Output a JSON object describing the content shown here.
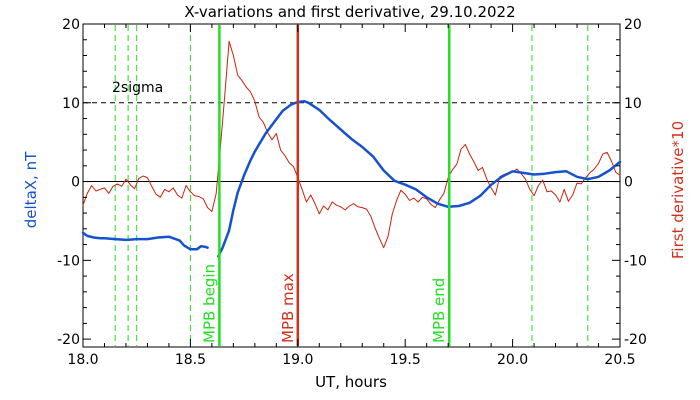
{
  "chart_data": {
    "type": "line",
    "title": "X-variations and first derivative, 29.10.2022",
    "xlabel": "UT, hours",
    "ylabel_left": "deltaX, nT",
    "ylabel_right": "First derivative*10",
    "xlim": [
      18.0,
      20.5
    ],
    "ylim": [
      -21,
      20
    ],
    "x_ticks": [
      "18.0",
      "18.5",
      "19.0",
      "19.5",
      "20.0",
      "20.5"
    ],
    "y_ticks": [
      "-20",
      "-10",
      "0",
      "10",
      "20"
    ],
    "colors": {
      "deltaX": "#1552d0",
      "derivative": "#c8240e",
      "mpb_boundary": "#22e022",
      "mpb_max": "#d2301a",
      "minor_dashed": "#22e022"
    },
    "sigma_label": "2sigma",
    "sigma_level": 10,
    "vertical_lines": [
      {
        "x": 18.635,
        "label": "MPB begin",
        "color": "#22e022"
      },
      {
        "x": 19.0,
        "label": "MPB max",
        "color": "#d2301a"
      },
      {
        "x": 19.705,
        "label": "MPB end",
        "color": "#22e022"
      }
    ],
    "minor_dashed_x": [
      18.15,
      18.21,
      18.25,
      18.5,
      20.09,
      20.35
    ],
    "series": [
      {
        "name": "deltaX",
        "color": "#1552d0",
        "segments": [
          {
            "x": [
              18.0,
              18.02,
              18.05,
              18.08,
              18.1,
              18.15,
              18.2,
              18.25,
              18.3,
              18.35,
              18.4,
              18.45,
              18.47,
              18.5,
              18.53,
              18.55,
              18.57,
              18.58
            ],
            "y": [
              -6.5,
              -6.9,
              -7.1,
              -7.2,
              -7.2,
              -7.3,
              -7.4,
              -7.3,
              -7.3,
              -7.1,
              -7.0,
              -7.5,
              -8.1,
              -8.6,
              -8.6,
              -8.2,
              -8.3,
              -8.4
            ]
          },
          {
            "x": [
              18.63,
              18.65,
              18.68,
              18.7,
              18.72,
              18.75,
              18.78,
              18.8,
              18.85,
              18.9,
              18.93,
              18.97,
              19.0,
              19.03,
              19.05,
              19.1,
              19.15,
              19.2,
              19.25,
              19.3,
              19.35,
              19.4,
              19.45,
              19.5,
              19.55,
              19.6,
              19.65,
              19.7,
              19.75,
              19.8,
              19.85,
              19.9,
              19.95,
              20.0,
              20.05,
              20.1,
              20.15,
              20.2,
              20.25,
              20.3,
              20.35,
              20.4,
              20.45,
              20.5
            ],
            "y": [
              -9.5,
              -8.4,
              -6.2,
              -3.6,
              -1.4,
              0.8,
              2.7,
              3.8,
              6.1,
              7.9,
              9.0,
              9.8,
              10.1,
              10.2,
              10.0,
              9.1,
              7.8,
              6.6,
              5.4,
              4.4,
              3.2,
              1.4,
              0.1,
              -0.4,
              -1.0,
              -2.0,
              -2.8,
              -3.2,
              -3.1,
              -2.7,
              -1.8,
              -0.4,
              0.6,
              1.3,
              1.1,
              0.9,
              1.0,
              1.2,
              1.3,
              0.6,
              0.3,
              0.6,
              1.4,
              2.5
            ]
          }
        ]
      },
      {
        "name": "First derivative*10",
        "color": "#c8240e",
        "segments": [
          {
            "x": [
              18.0,
              18.02,
              18.04,
              18.06,
              18.08,
              18.1,
              18.12,
              18.14,
              18.16,
              18.18,
              18.2,
              18.22,
              18.24,
              18.26,
              18.28,
              18.3,
              18.32,
              18.34,
              18.36,
              18.38,
              18.4,
              18.42,
              18.44,
              18.46,
              18.48,
              18.5,
              18.52,
              18.54,
              18.56,
              18.58,
              18.6,
              18.62,
              18.64,
              18.66,
              18.68,
              18.7,
              18.72,
              18.74,
              18.76,
              18.78,
              18.8,
              18.82,
              18.84,
              18.86,
              18.88,
              18.9,
              18.92,
              18.94,
              18.96,
              18.98,
              19.0,
              19.02,
              19.04,
              19.06,
              19.08,
              19.1,
              19.12,
              19.14,
              19.16,
              19.18,
              19.2,
              19.22,
              19.24,
              19.26,
              19.28,
              19.3,
              19.32,
              19.34,
              19.36,
              19.38,
              19.4,
              19.42,
              19.44,
              19.46,
              19.48,
              19.5,
              19.52,
              19.54,
              19.56,
              19.58,
              19.6,
              19.62,
              19.64,
              19.66,
              19.68,
              19.7,
              19.72,
              19.74,
              19.76,
              19.78,
              19.8,
              19.82,
              19.84,
              19.86,
              19.88,
              19.9,
              19.92,
              19.94,
              19.96,
              19.98,
              20.0,
              20.02,
              20.04,
              20.06,
              20.08,
              20.1,
              20.12,
              20.14,
              20.16,
              20.18,
              20.2,
              20.22,
              20.24,
              20.26,
              20.28,
              20.3,
              20.32,
              20.34,
              20.36,
              20.38,
              20.4,
              20.42,
              20.44,
              20.46,
              20.48,
              20.5
            ],
            "y": [
              -3.0,
              -1.5,
              -0.5,
              -1.2,
              -1.0,
              -0.8,
              -1.5,
              -0.6,
              -0.3,
              -0.6,
              0.3,
              -0.4,
              -0.9,
              0.4,
              0.7,
              0.5,
              -0.6,
              -1.6,
              -2.0,
              -1.0,
              -1.3,
              -0.8,
              -1.7,
              -2.1,
              -0.5,
              -1.3,
              -1.8,
              -1.9,
              -2.2,
              -3.3,
              -3.8,
              -1.5,
              4.5,
              11.0,
              17.8,
              16.0,
              13.5,
              12.8,
              12.0,
              11.4,
              10.2,
              8.2,
              7.5,
              6.2,
              5.3,
              6.1,
              4.0,
              3.3,
              2.4,
              1.9,
              0.5,
              -1.0,
              -2.6,
              -1.7,
              -2.8,
              -4.1,
              -3.1,
              -3.6,
              -2.6,
              -3.0,
              -3.2,
              -3.6,
              -3.1,
              -2.8,
              -3.2,
              -3.3,
              -3.5,
              -4.4,
              -5.9,
              -7.2,
              -8.4,
              -7.0,
              -4.1,
              -2.4,
              -1.1,
              -1.6,
              -2.4,
              -2.1,
              -2.6,
              -2.0,
              -2.2,
              -2.9,
              -3.3,
              -2.3,
              -1.5,
              0.5,
              1.5,
              2.2,
              4.1,
              4.7,
              3.5,
              2.5,
              1.4,
              1.8,
              0.3,
              -0.8,
              -1.7,
              0.6,
              0.9,
              1.1,
              1.2,
              1.6,
              1.0,
              0.3,
              -1.0,
              -1.8,
              -0.5,
              0.2,
              -1.3,
              -1.2,
              -1.7,
              -2.6,
              -1.0,
              -2.5,
              -1.7,
              -0.2,
              -0.3,
              0.5,
              1.1,
              1.6,
              2.3,
              3.5,
              3.7,
              2.6,
              1.2,
              0.8
            ]
          }
        ]
      }
    ]
  }
}
